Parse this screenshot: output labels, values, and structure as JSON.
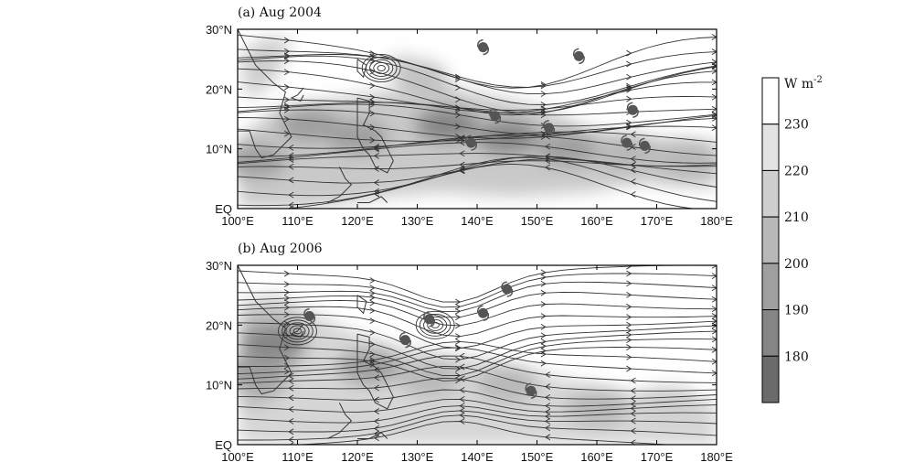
{
  "chart_data": [
    {
      "type": "heatmap",
      "title": "(a)  Aug 2004",
      "x_ticks": [
        "100°E",
        "110°E",
        "120°E",
        "130°E",
        "140°E",
        "150°E",
        "160°E",
        "170°E",
        "180°E"
      ],
      "y_ticks": [
        "EQ",
        "10°N",
        "20°N",
        "30°N"
      ],
      "xlim": [
        100,
        180
      ],
      "ylim": [
        0,
        30
      ],
      "low_olr_regions": [
        {
          "lon": 103,
          "lat": 8,
          "level": 200
        },
        {
          "lon": 112,
          "lat": 14,
          "level": 200
        },
        {
          "lon": 120,
          "lat": 12,
          "level": 200
        },
        {
          "lon": 135,
          "lat": 14,
          "level": 190
        },
        {
          "lon": 145,
          "lat": 12,
          "level": 190
        },
        {
          "lon": 155,
          "lat": 10,
          "level": 200
        },
        {
          "lon": 165,
          "lat": 9,
          "level": 210
        },
        {
          "lon": 175,
          "lat": 8,
          "level": 210
        }
      ],
      "tc_genesis": [
        {
          "lon": 141,
          "lat": 27
        },
        {
          "lon": 157,
          "lat": 25.5
        },
        {
          "lon": 166,
          "lat": 16.5
        },
        {
          "lon": 143,
          "lat": 15.5
        },
        {
          "lon": 152,
          "lat": 13.5
        },
        {
          "lon": 139,
          "lat": 11
        },
        {
          "lon": 165,
          "lat": 11
        },
        {
          "lon": 168,
          "lat": 10.5
        }
      ],
      "circulation_centers": [
        {
          "lon": 124,
          "lat": 23.5
        }
      ]
    },
    {
      "type": "heatmap",
      "title": "(b)  Aug 2006",
      "x_ticks": [
        "100°E",
        "110°E",
        "120°E",
        "130°E",
        "140°E",
        "150°E",
        "160°E",
        "170°E",
        "180°E"
      ],
      "y_ticks": [
        "EQ",
        "10°N",
        "20°N",
        "30°N"
      ],
      "xlim": [
        100,
        180
      ],
      "ylim": [
        0,
        30
      ],
      "low_olr_regions": [
        {
          "lon": 106,
          "lat": 17,
          "level": 190
        },
        {
          "lon": 103,
          "lat": 12,
          "level": 200
        },
        {
          "lon": 122,
          "lat": 13,
          "level": 200
        },
        {
          "lon": 132,
          "lat": 11,
          "level": 210
        },
        {
          "lon": 145,
          "lat": 10,
          "level": 210
        },
        {
          "lon": 160,
          "lat": 6,
          "level": 210
        },
        {
          "lon": 172,
          "lat": 7,
          "level": 220
        }
      ],
      "tc_genesis": [
        {
          "lon": 112,
          "lat": 21.5
        },
        {
          "lon": 132,
          "lat": 21
        },
        {
          "lon": 128,
          "lat": 17.5
        },
        {
          "lon": 141,
          "lat": 22
        },
        {
          "lon": 145,
          "lat": 26
        },
        {
          "lon": 149,
          "lat": 9
        }
      ],
      "circulation_centers": [
        {
          "lon": 110,
          "lat": 19
        },
        {
          "lon": 133,
          "lat": 20
        }
      ]
    }
  ],
  "colorbar": {
    "unit": "W m",
    "unit_exp": "-2",
    "levels": [
      "230",
      "220",
      "210",
      "200",
      "190",
      "180"
    ],
    "colors": [
      "#ffffff",
      "#e3e3e3",
      "#cfcfcf",
      "#b8b8b8",
      "#9f9f9f",
      "#858585",
      "#6b6b6b"
    ]
  },
  "colors": {
    "frame": "#000000",
    "streamline": "#333333",
    "land": "#444444",
    "tc_marker": "#555555"
  }
}
